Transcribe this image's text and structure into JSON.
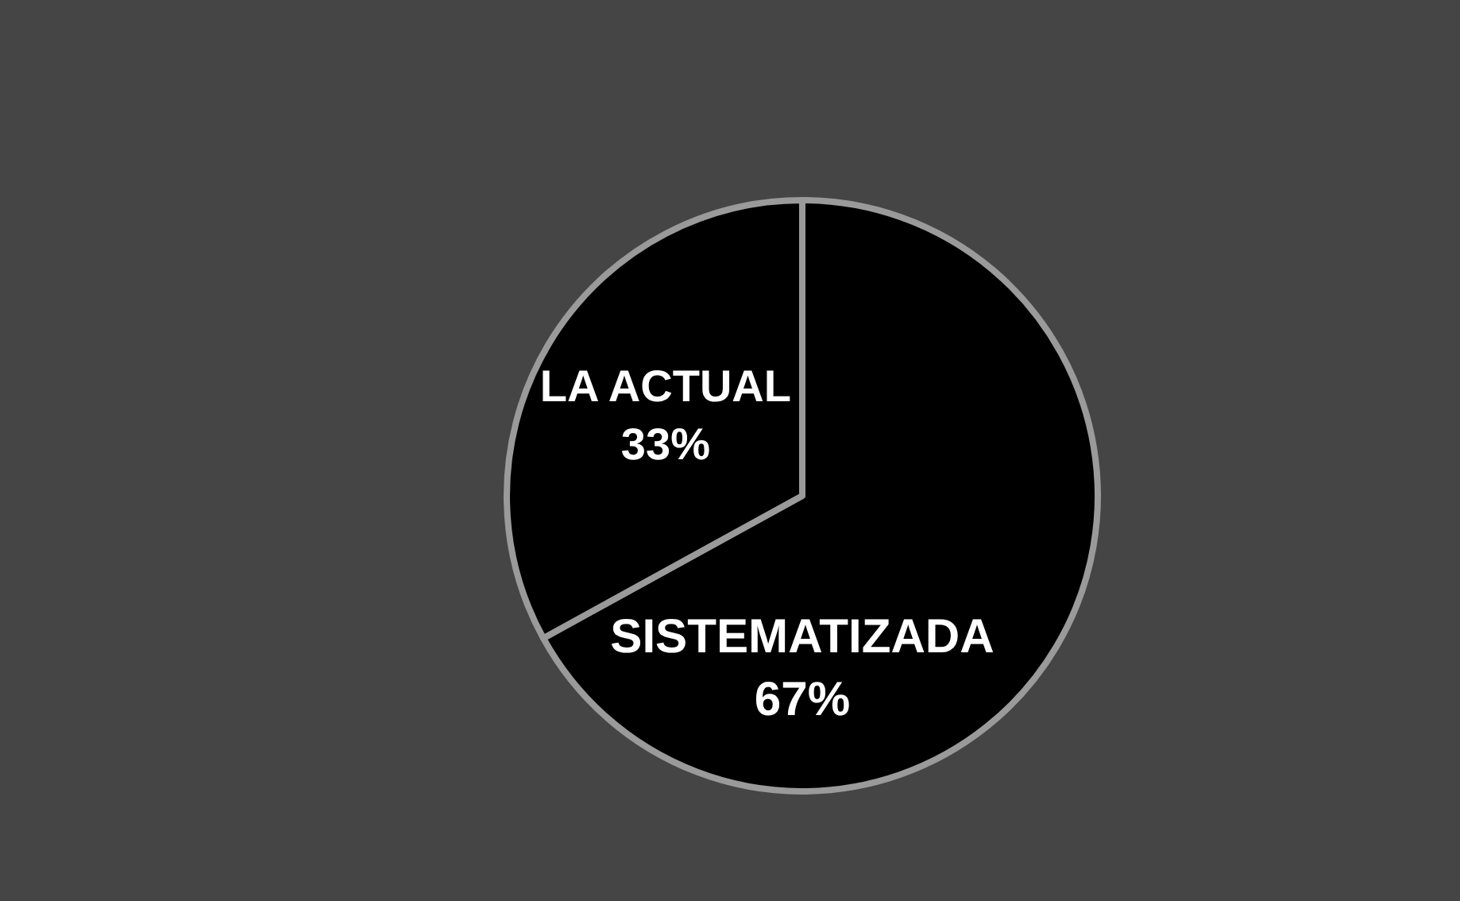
{
  "chart_data": {
    "type": "pie",
    "categories": [
      "SISTEMATIZADA",
      "LA ACTUAL"
    ],
    "values": [
      67,
      33
    ],
    "colors": [
      "#000000",
      "#000000"
    ],
    "value_labels": [
      "67%",
      "33%"
    ]
  }
}
